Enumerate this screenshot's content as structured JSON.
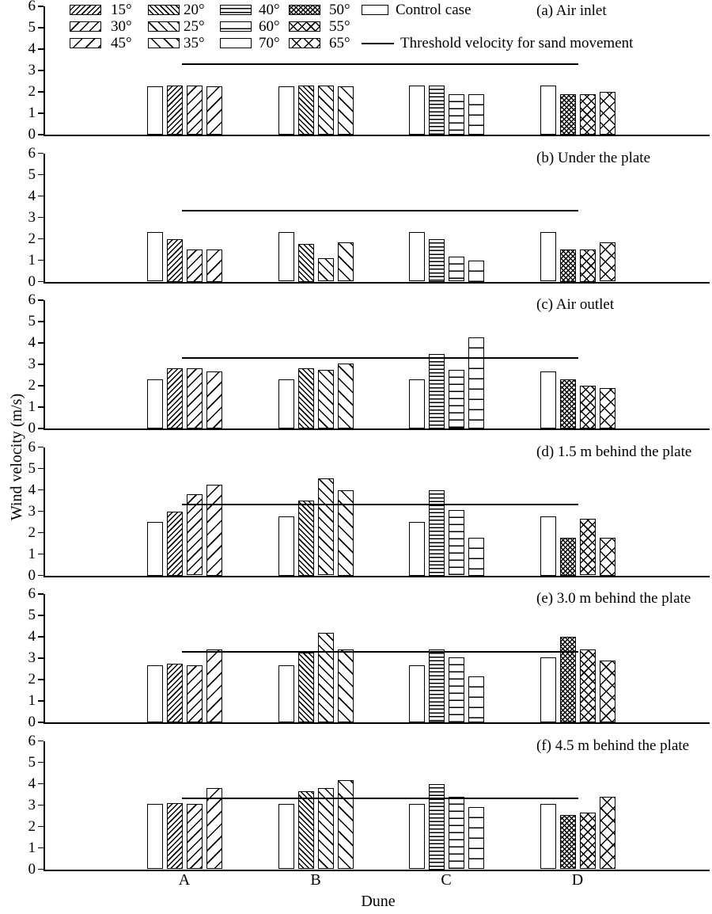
{
  "figure": {
    "background_color": "#ffffff",
    "ink_color": "#000000"
  },
  "legend": {
    "columns": [
      [
        "15°",
        "30°",
        "45°"
      ],
      [
        "20°",
        "25°",
        "35°"
      ],
      [
        "40°",
        "60°",
        "70°"
      ],
      [
        "50°",
        "55°",
        "65°"
      ]
    ],
    "control_label": "Control case",
    "threshold_label": "Threshold velocity for sand movement"
  },
  "chart_data": {
    "type": "bar",
    "categories": [
      "A",
      "B",
      "C",
      "D"
    ],
    "xlabel": "Dune",
    "ylabel": "Wind velocity (m/s)",
    "ylim": [
      0,
      6
    ],
    "yticks": [
      0,
      1,
      2,
      3,
      4,
      5,
      6
    ],
    "grid": false,
    "legend_position": "top-left of panel (a)",
    "threshold_value": 3.3,
    "bar_labels_per_dune": {
      "A": [
        "Control case",
        "15°",
        "30°",
        "45°"
      ],
      "B": [
        "Control case",
        "20°",
        "25°",
        "35°"
      ],
      "C": [
        "Control case",
        "40°",
        "60°",
        "70°"
      ],
      "D": [
        "Control case",
        "50°",
        "55°",
        "65°"
      ]
    },
    "patterns": {
      "Control case": "plain",
      "15°": "f-dense",
      "30°": "f-med",
      "45°": "f-sparse",
      "20°": "b-dense",
      "25°": "b-med",
      "35°": "b-sparse",
      "40°": "h-dense",
      "60°": "h-med",
      "70°": "h-sparse",
      "50°": "x-dense",
      "55°": "x-med",
      "65°": "x-sparse"
    },
    "panels": [
      {
        "label": "(a) Air inlet",
        "values": {
          "A": [
            2.25,
            2.3,
            2.3,
            2.25
          ],
          "B": [
            2.25,
            2.3,
            2.3,
            2.25
          ],
          "C": [
            2.3,
            2.3,
            1.9,
            1.9
          ],
          "D": [
            2.3,
            1.9,
            1.9,
            2.0
          ]
        }
      },
      {
        "label": "(b) Under the plate",
        "values": {
          "A": [
            2.3,
            2.0,
            1.5,
            1.5
          ],
          "B": [
            2.3,
            1.75,
            1.1,
            1.85
          ],
          "C": [
            2.3,
            2.0,
            1.15,
            1.0
          ],
          "D": [
            2.3,
            1.5,
            1.5,
            1.85
          ]
        }
      },
      {
        "label": "(c) Air outlet",
        "values": {
          "A": [
            2.3,
            2.8,
            2.8,
            2.65
          ],
          "B": [
            2.3,
            2.8,
            2.75,
            3.05
          ],
          "C": [
            2.3,
            3.5,
            2.75,
            4.25
          ],
          "D": [
            2.65,
            2.3,
            2.0,
            1.9
          ]
        }
      },
      {
        "label": "(d) 1.5 m behind the plate",
        "values": {
          "A": [
            2.5,
            3.0,
            3.8,
            4.25
          ],
          "B": [
            2.75,
            3.5,
            4.55,
            4.0
          ],
          "C": [
            2.5,
            4.0,
            3.05,
            1.75
          ],
          "D": [
            2.75,
            1.75,
            2.65,
            1.75
          ]
        }
      },
      {
        "label": "(e) 3.0 m behind the plate",
        "values": {
          "A": [
            2.65,
            2.75,
            2.65,
            3.4
          ],
          "B": [
            2.65,
            3.25,
            4.2,
            3.4
          ],
          "C": [
            2.65,
            3.4,
            3.05,
            2.15
          ],
          "D": [
            3.05,
            4.0,
            3.4,
            2.9
          ]
        }
      },
      {
        "label": "(f) 4.5 m behind the plate",
        "values": {
          "A": [
            3.05,
            3.1,
            3.05,
            3.8
          ],
          "B": [
            3.05,
            3.65,
            3.8,
            4.15
          ],
          "C": [
            3.05,
            4.0,
            3.4,
            2.9
          ],
          "D": [
            3.05,
            2.55,
            2.65,
            3.4
          ]
        }
      }
    ]
  }
}
